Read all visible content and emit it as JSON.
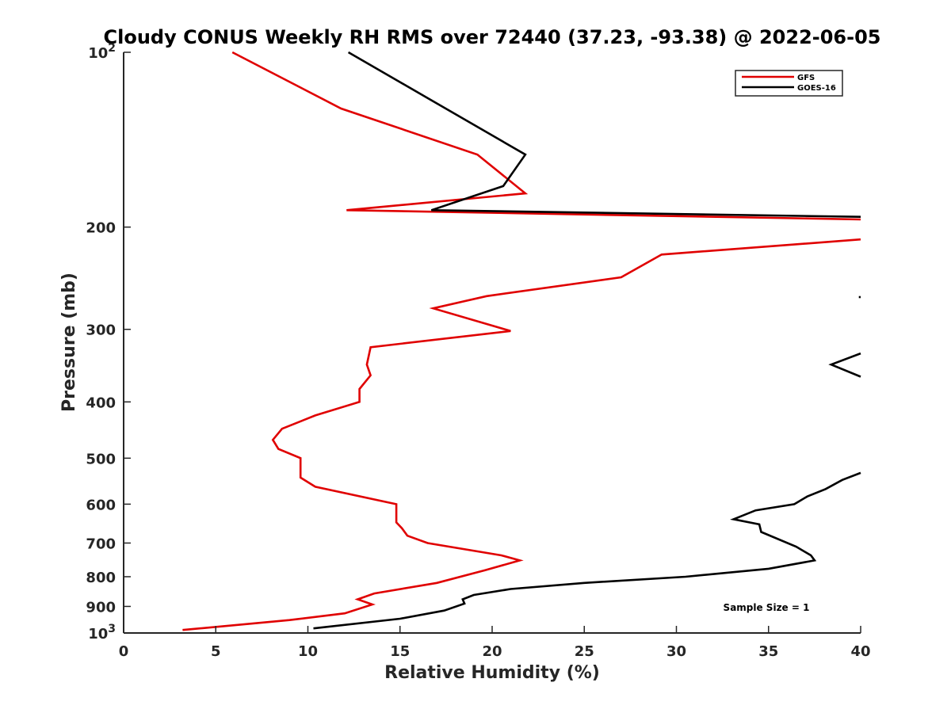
{
  "chart_data": {
    "type": "line",
    "title": "Cloudy CONUS Weekly RH RMS over 72440 (37.23, -93.38) @ 2022-06-05",
    "xlabel": "Relative Humidity (%)",
    "ylabel": "Pressure (mb)",
    "xlim": [
      0,
      40
    ],
    "ylim": [
      100,
      1000
    ],
    "y_scale": "log",
    "y_reversed": true,
    "x_ticks": [
      "0",
      "5",
      "10",
      "15",
      "20",
      "25",
      "30",
      "35",
      "40"
    ],
    "y_ticks": [
      {
        "value": 100,
        "label": "10",
        "sup": "2"
      },
      {
        "value": 200,
        "label": "200",
        "sup": ""
      },
      {
        "value": 300,
        "label": "300",
        "sup": ""
      },
      {
        "value": 400,
        "label": "400",
        "sup": ""
      },
      {
        "value": 500,
        "label": "500",
        "sup": ""
      },
      {
        "value": 600,
        "label": "600",
        "sup": ""
      },
      {
        "value": 700,
        "label": "700",
        "sup": ""
      },
      {
        "value": 800,
        "label": "800",
        "sup": ""
      },
      {
        "value": 900,
        "label": "900",
        "sup": ""
      },
      {
        "value": 1000,
        "label": "10",
        "sup": "3"
      }
    ],
    "grid": false,
    "legend_position": "top-right",
    "annotation": "Sample Size = 1",
    "series": [
      {
        "name": "GFS",
        "color": "#e00000",
        "segments": [
          [
            [
              5.9,
              100
            ],
            [
              11.8,
              125
            ],
            [
              19.2,
              150
            ],
            [
              21.8,
              175
            ],
            [
              12.1,
              187
            ],
            [
              40,
              194
            ]
          ],
          [
            [
              40,
              210
            ],
            [
              29.2,
              223
            ],
            [
              27.0,
              244
            ],
            [
              19.7,
              263
            ],
            [
              16.8,
              276
            ],
            [
              21.0,
              302
            ],
            [
              13.4,
              322
            ],
            [
              13.2,
              345
            ],
            [
              13.4,
              360
            ],
            [
              12.8,
              380
            ],
            [
              12.8,
              400
            ],
            [
              10.4,
              422
            ],
            [
              8.6,
              445
            ],
            [
              8.1,
              465
            ],
            [
              8.4,
              482
            ],
            [
              9.6,
              500
            ],
            [
              9.6,
              520
            ],
            [
              9.6,
              540
            ],
            [
              10.4,
              560
            ],
            [
              14.8,
              600
            ],
            [
              14.8,
              625
            ],
            [
              14.8,
              645
            ],
            [
              15.1,
              660
            ],
            [
              15.4,
              680
            ],
            [
              16.5,
              700
            ],
            [
              20.5,
              735
            ],
            [
              21.5,
              750
            ],
            [
              19.6,
              780
            ],
            [
              17.0,
              820
            ],
            [
              13.6,
              855
            ],
            [
              12.7,
              875
            ],
            [
              13.5,
              893
            ],
            [
              12.0,
              925
            ],
            [
              9.0,
              950
            ],
            [
              3.2,
              988
            ]
          ]
        ]
      },
      {
        "name": "GOES-16",
        "color": "#000000",
        "segments": [
          [
            [
              12.2,
              100
            ],
            [
              21.8,
              150
            ],
            [
              20.6,
              170
            ],
            [
              16.7,
              187
            ],
            [
              40,
              192
            ]
          ],
          [
            [
              40,
              264
            ],
            [
              39.9,
              264
            ]
          ],
          [
            [
              40,
              330
            ],
            [
              38.4,
              345
            ],
            [
              40,
              362
            ]
          ],
          [
            [
              40,
              530
            ],
            [
              39,
              545
            ],
            [
              38.1,
              565
            ],
            [
              37.1,
              582
            ],
            [
              36.4,
              600
            ],
            [
              34.3,
              615
            ],
            [
              33.1,
              637
            ],
            [
              34.5,
              650
            ],
            [
              34.6,
              670
            ],
            [
              36.5,
              710
            ],
            [
              37.3,
              735
            ],
            [
              37.5,
              750
            ],
            [
              35.0,
              775
            ],
            [
              30.5,
              800
            ],
            [
              25.0,
              820
            ],
            [
              21.0,
              840
            ],
            [
              19.0,
              860
            ],
            [
              18.4,
              875
            ],
            [
              18.5,
              890
            ],
            [
              17.4,
              915
            ],
            [
              15.0,
              945
            ],
            [
              10.3,
              982
            ]
          ]
        ]
      }
    ]
  }
}
